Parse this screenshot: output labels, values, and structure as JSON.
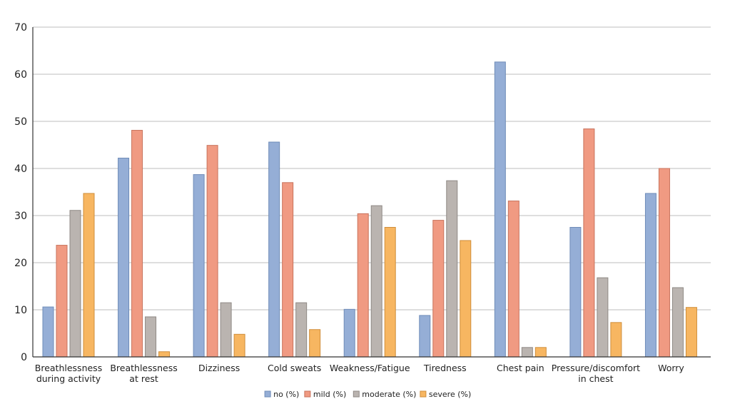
{
  "chart_data": {
    "type": "bar",
    "title": "",
    "xlabel": "",
    "ylabel": "",
    "ylim": [
      0,
      70
    ],
    "yticks": [
      0,
      10,
      20,
      30,
      40,
      50,
      60,
      70
    ],
    "grid": true,
    "legend_position": "bottom-center",
    "categories": [
      [
        "Breathlessness",
        "during activity"
      ],
      [
        "Breathlessness",
        "at rest"
      ],
      [
        "Dizziness"
      ],
      [
        "Cold sweats"
      ],
      [
        "Weakness/Fatigue"
      ],
      [
        "Tiredness"
      ],
      [
        "Chest pain"
      ],
      [
        "Pressure/discomfort",
        "in chest"
      ],
      [
        "Worry"
      ]
    ],
    "series": [
      {
        "name": "no (%)",
        "color": "#95aed6",
        "stroke": "#6f8cb8",
        "values": [
          10.6,
          42.2,
          38.7,
          45.6,
          10.1,
          8.8,
          62.6,
          27.5,
          34.7
        ]
      },
      {
        "name": "mild (%)",
        "color": "#f09a82",
        "stroke": "#c8735c",
        "values": [
          23.7,
          48.1,
          44.9,
          37.0,
          30.4,
          29.0,
          33.1,
          48.4,
          40.0
        ]
      },
      {
        "name": "moderate (%)",
        "color": "#bab4b0",
        "stroke": "#8f8985",
        "values": [
          31.1,
          8.5,
          11.5,
          11.5,
          32.1,
          37.4,
          2.0,
          16.8,
          14.7
        ]
      },
      {
        "name": "severe (%)",
        "color": "#f7b661",
        "stroke": "#cf8e3b",
        "values": [
          34.7,
          1.1,
          4.8,
          5.8,
          27.5,
          24.7,
          2.0,
          7.3,
          10.5
        ]
      }
    ]
  }
}
